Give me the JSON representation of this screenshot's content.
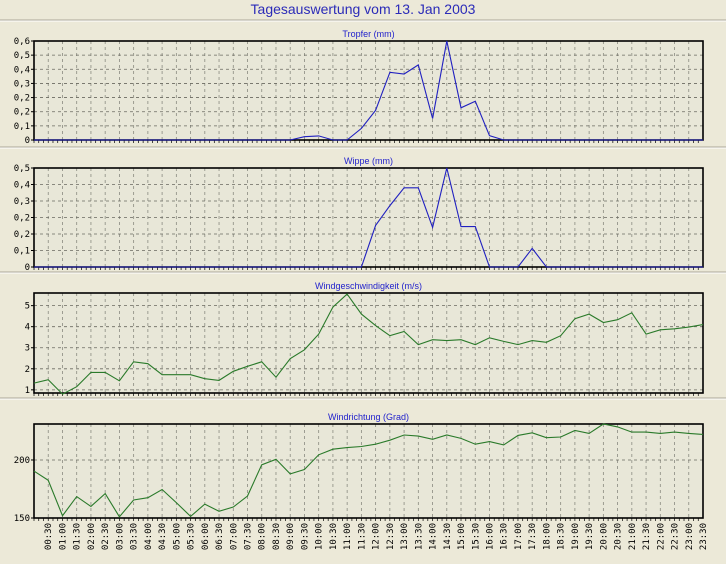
{
  "page_title": "Tagesauswertung vom 13. Jan 2003",
  "colors": {
    "rain": "#2020c0",
    "wind": "#2a7a2a",
    "title": "#2b2bb8"
  },
  "x_labels": [
    "00:30",
    "01:00",
    "01:30",
    "02:00",
    "02:30",
    "03:00",
    "03:30",
    "04:00",
    "04:30",
    "05:00",
    "05:30",
    "06:00",
    "06:30",
    "07:00",
    "07:30",
    "08:00",
    "08:30",
    "09:00",
    "09:30",
    "10:00",
    "10:30",
    "11:00",
    "11:30",
    "12:00",
    "12:30",
    "13:00",
    "13:30",
    "14:00",
    "14:30",
    "15:00",
    "15:30",
    "16:00",
    "16:30",
    "17:00",
    "17:30",
    "18:00",
    "18:30",
    "19:00",
    "19:30",
    "20:00",
    "20:30",
    "21:00",
    "21:30",
    "22:00",
    "22:30",
    "23:00",
    "23:30"
  ],
  "chart_data": [
    {
      "type": "line",
      "title": "Tropfer (mm)",
      "xlabel": "",
      "ylabel": "",
      "ylim": [
        0,
        0.6
      ],
      "y_tick_labels": [
        "0,6",
        "0,5",
        "0,4",
        "0,3",
        "0,2",
        "0,2",
        "0,1",
        "0"
      ],
      "x_start": "00:00",
      "x_step_minutes": 30,
      "color_key": "rain",
      "values": [
        0,
        0,
        0,
        0,
        0,
        0,
        0,
        0,
        0,
        0,
        0,
        0,
        0,
        0,
        0,
        0,
        0,
        0,
        0,
        0.02,
        0.025,
        0,
        0,
        0.07,
        0.18,
        0.41,
        0.4,
        0.455,
        0.13,
        0.6,
        0.195,
        0.235,
        0.026,
        0,
        0,
        0,
        0,
        0,
        0,
        0,
        0,
        0,
        0,
        0,
        0,
        0,
        0,
        0
      ]
    },
    {
      "type": "line",
      "title": "Wippe (mm)",
      "xlabel": "",
      "ylabel": "",
      "ylim": [
        0,
        0.5
      ],
      "y_tick_labels": [
        "0,5",
        "0,4",
        "0,3",
        "0,2",
        "0,2",
        "0,1",
        "0"
      ],
      "x_start": "00:00",
      "x_step_minutes": 30,
      "color_key": "rain",
      "values": [
        0,
        0,
        0,
        0,
        0,
        0,
        0,
        0,
        0,
        0,
        0,
        0,
        0,
        0,
        0,
        0,
        0,
        0,
        0,
        0,
        0,
        0,
        0,
        0,
        0.21,
        0.31,
        0.4,
        0.4,
        0.2,
        0.5,
        0.204,
        0.204,
        0,
        0,
        0,
        0.094,
        0,
        0,
        0,
        0,
        0,
        0,
        0,
        0,
        0,
        0,
        0,
        0
      ]
    },
    {
      "type": "line",
      "title": "Windgeschwindigkeit (m/s)",
      "xlabel": "",
      "ylabel": "",
      "ylim": [
        0.85,
        5.6
      ],
      "y_ticks": [
        5,
        4,
        3,
        2,
        1
      ],
      "y_tick_labels": [
        "5",
        "4",
        "3",
        "2",
        "1"
      ],
      "x_start": "00:00",
      "x_step_minutes": 30,
      "color_key": "wind",
      "values": [
        1.32,
        1.48,
        0.8,
        1.15,
        1.83,
        1.83,
        1.43,
        2.33,
        2.24,
        1.72,
        1.72,
        1.72,
        1.53,
        1.45,
        1.88,
        2.12,
        2.33,
        1.6,
        2.48,
        2.9,
        3.65,
        4.93,
        5.55,
        4.6,
        4.05,
        3.57,
        3.77,
        3.15,
        3.38,
        3.34,
        3.38,
        3.15,
        3.47,
        3.3,
        3.15,
        3.34,
        3.26,
        3.57,
        4.38,
        4.6,
        4.2,
        4.33,
        4.66,
        3.65,
        3.85,
        3.9,
        3.98,
        4.1
      ]
    },
    {
      "type": "line",
      "title": "Windrichtung (Grad)",
      "xlabel": "",
      "ylabel": "",
      "ylim": [
        150,
        231
      ],
      "y_ticks": [
        200,
        150
      ],
      "y_tick_labels": [
        "200",
        "150"
      ],
      "x_start": "00:00",
      "x_step_minutes": 30,
      "color_key": "wind",
      "values": [
        190.4,
        182.5,
        152,
        168.4,
        160,
        171,
        151,
        165.5,
        167.5,
        174.6,
        163.3,
        151.4,
        162,
        155.8,
        159.5,
        169,
        195.8,
        200.6,
        188,
        191.8,
        204.5,
        209.3,
        210.7,
        211.6,
        213.6,
        217,
        221.5,
        220.6,
        217.8,
        221.5,
        218.6,
        213.6,
        215.8,
        213,
        221.2,
        223.4,
        219.2,
        219.8,
        225.4,
        222.9,
        231,
        228.5,
        224,
        224,
        222.9,
        224,
        222.9,
        222
      ]
    }
  ]
}
